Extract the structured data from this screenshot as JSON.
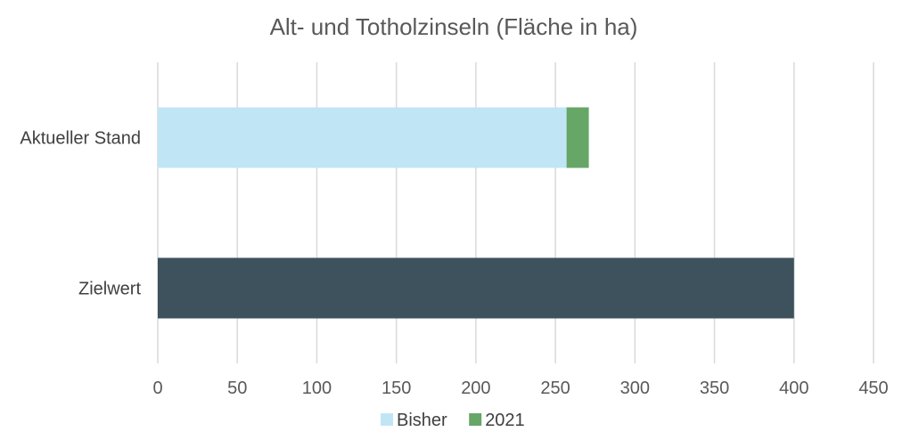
{
  "chart_data": {
    "type": "bar",
    "orientation": "horizontal",
    "stacked": true,
    "title": "Alt- und Totholzinseln (Fläche in ha)",
    "categories": [
      "Aktueller Stand",
      "Zielwert"
    ],
    "series": [
      {
        "name": "Bisher",
        "color": "#c0e6f6",
        "values": [
          257,
          null
        ]
      },
      {
        "name": "2021",
        "color": "#66a666",
        "values": [
          14,
          null
        ]
      },
      {
        "name": "",
        "color": "#3d525c",
        "values": [
          null,
          400
        ]
      }
    ],
    "xlim": [
      0,
      450
    ],
    "xticks": [
      "0",
      "50",
      "100",
      "150",
      "200",
      "250",
      "300",
      "350",
      "400",
      "450"
    ],
    "grid": true,
    "legend": {
      "placement": "bottom",
      "entries": [
        "Bisher",
        "2021"
      ]
    }
  }
}
